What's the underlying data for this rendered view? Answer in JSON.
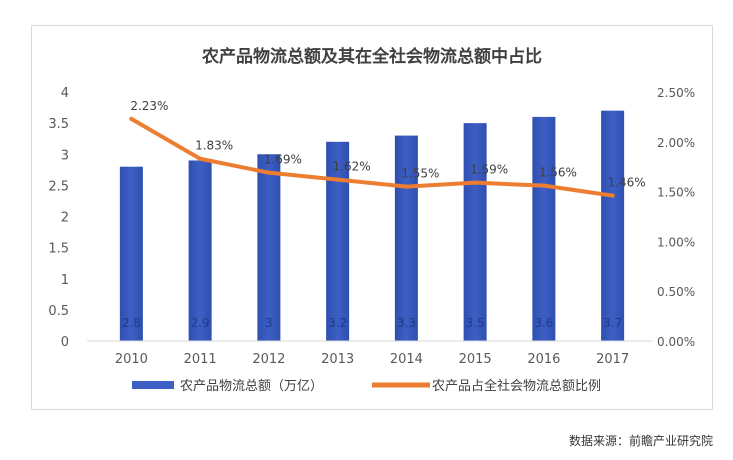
{
  "chart_data": {
    "type": "bar",
    "title": "农产品物流总额及其在全社会物流总额中占比",
    "categories": [
      "2010",
      "2011",
      "2012",
      "2013",
      "2014",
      "2015",
      "2016",
      "2017"
    ],
    "series": [
      {
        "name": "农产品物流总额（万亿）",
        "type": "bar",
        "axis": "left",
        "values": [
          2.8,
          2.9,
          3,
          3.2,
          3.3,
          3.5,
          3.6,
          3.7
        ],
        "labels": [
          "2.8",
          "2.9",
          "3",
          "3.2",
          "3.3",
          "3.5",
          "3.6",
          "3.7"
        ]
      },
      {
        "name": "农产品占全社会物流总额比例",
        "type": "line",
        "axis": "right",
        "values": [
          2.23,
          1.83,
          1.69,
          1.62,
          1.55,
          1.59,
          1.56,
          1.46
        ],
        "labels": [
          "2.23%",
          "1.83%",
          "1.69%",
          "1.62%",
          "1.55%",
          "1.59%",
          "1.56%",
          "1.46%"
        ]
      }
    ],
    "y_left": {
      "min": 0,
      "max": 4,
      "ticks": [
        0,
        0.5,
        1,
        1.5,
        2,
        2.5,
        3,
        3.5,
        4
      ],
      "tick_labels": [
        "0",
        "0.5",
        "1",
        "1.5",
        "2",
        "2.5",
        "3",
        "3.5",
        "4"
      ]
    },
    "y_right": {
      "min": 0,
      "max": 2.5,
      "ticks": [
        0,
        0.5,
        1,
        1.5,
        2,
        2.5
      ],
      "tick_labels": [
        "0.00%",
        "0.50%",
        "1.00%",
        "1.50%",
        "2.00%",
        "2.50%"
      ]
    },
    "grid": false,
    "legend_position": "bottom",
    "colors": {
      "bar": "#3d5fc4",
      "bar_label": "#1f3a8a",
      "line": "#ed7d31",
      "axis_text": "#595959"
    }
  },
  "source_note": "数据来源：前瞻产业研究院"
}
